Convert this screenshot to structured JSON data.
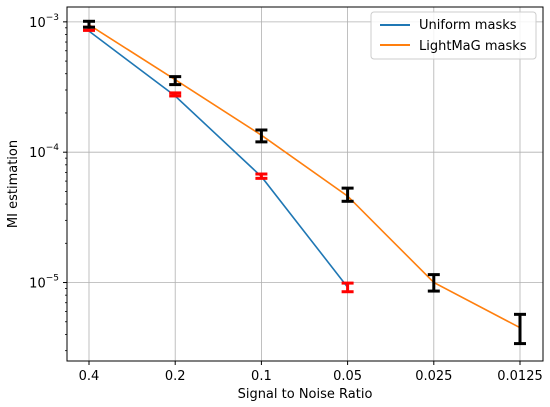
{
  "chart_data": {
    "type": "line",
    "title": "",
    "xlabel": "Signal to Noise Ratio",
    "ylabel": "MI estimation",
    "x": [
      "0.4",
      "0.2",
      "0.1",
      "0.05",
      "0.025",
      "0.0125"
    ],
    "yscale": "log",
    "ylim": [
      2.5e-06,
      0.0013
    ],
    "y_ticks": [
      {
        "value": 0.001,
        "base": "10",
        "exp": "−3"
      },
      {
        "value": 0.0001,
        "base": "10",
        "exp": "−4"
      },
      {
        "value": 1e-05,
        "base": "10",
        "exp": "−5"
      }
    ],
    "grid": true,
    "legend_position": "top-right",
    "series": [
      {
        "name": "Uniform masks",
        "color": "#1f77b4",
        "values": [
          0.00085,
          0.00027,
          6.5e-05,
          9.2e-06,
          null,
          null
        ],
        "error_color": "#ff0000",
        "error_bars": [
          [
            0.00086,
            0.00091
          ],
          [
            0.00027,
            0.000285
          ],
          [
            6.3e-05,
            6.8e-05
          ],
          [
            8.5e-06,
            9.9e-06
          ],
          null,
          null
        ]
      },
      {
        "name": "LightMaG masks",
        "color": "#ff7f0e",
        "values": [
          0.00095,
          0.00036,
          0.000135,
          4.6e-05,
          1e-05,
          4.5e-06
        ],
        "error_color": "#000000",
        "error_bars": [
          [
            0.00091,
            0.00101
          ],
          [
            0.00033,
            0.00038
          ],
          [
            0.00012,
            0.000148
          ],
          [
            4.2e-05,
            5.3e-05
          ],
          [
            8.6e-06,
            1.15e-05
          ],
          [
            3.4e-06,
            5.7e-06
          ]
        ]
      }
    ]
  }
}
